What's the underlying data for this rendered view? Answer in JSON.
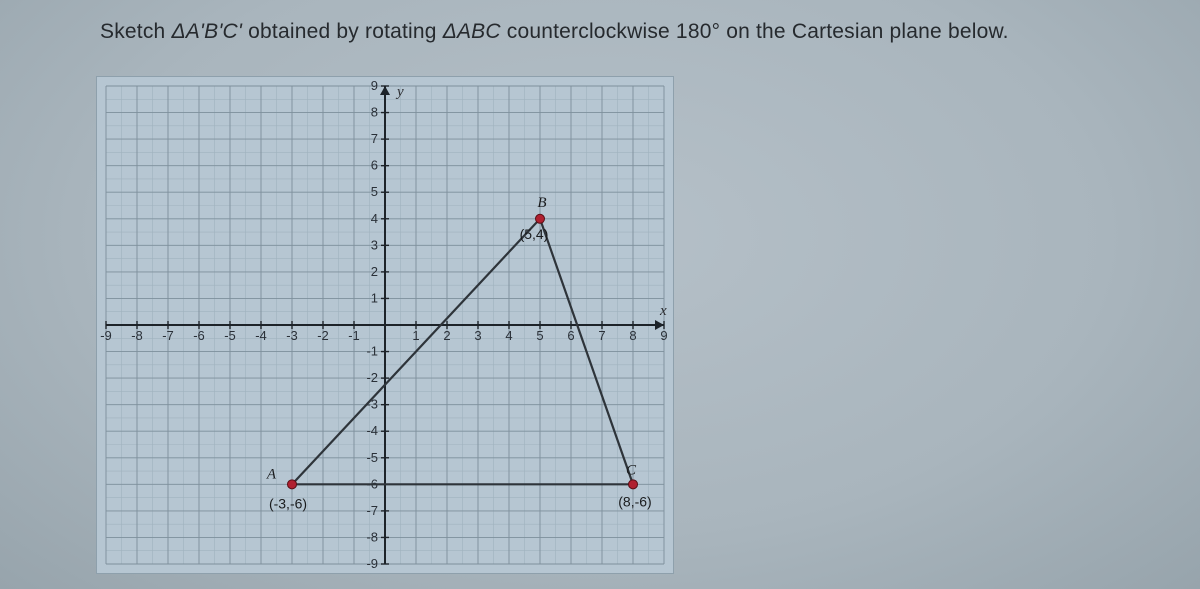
{
  "prompt": {
    "prefix": "Sketch ",
    "tri_prime": "ΔA'B'C'",
    "middle": " obtained by rotating ",
    "tri_abc": "ΔABC",
    "suffix": " counterclockwise 180° on the Cartesian plane below."
  },
  "axes": {
    "x_label": "x",
    "y_label": "y",
    "xlim": [
      -9,
      9
    ],
    "ylim": [
      -9,
      9
    ],
    "tick_step": 1,
    "x_ticks": [
      -9,
      -8,
      -7,
      -6,
      -5,
      -4,
      -3,
      -2,
      -1,
      1,
      2,
      3,
      4,
      5,
      6,
      7,
      8,
      9
    ],
    "y_ticks": [
      -9,
      -8,
      -7,
      -6,
      -5,
      -4,
      -3,
      -2,
      -1,
      1,
      2,
      3,
      4,
      5,
      6,
      7,
      8,
      9
    ]
  },
  "colors": {
    "page_bg": "#b5c0c8",
    "grid_bg": "#b6c6d2",
    "minor_grid": "#a0b2be",
    "major_grid": "#7e909c",
    "axis": "#1d2329",
    "tri_line": "#2e343a",
    "point_fill": "#b02030",
    "text": "#262a2e"
  },
  "points": {
    "A": {
      "name": "A",
      "x": -3,
      "y": -6,
      "label": "(-3,-6)"
    },
    "B": {
      "name": "B",
      "x": 5,
      "y": 4,
      "label": "(5,4)"
    },
    "C": {
      "name": "C",
      "x": 8,
      "y": -6,
      "label": "(8,-6)"
    }
  },
  "triangle_order": [
    "A",
    "B",
    "C"
  ]
}
